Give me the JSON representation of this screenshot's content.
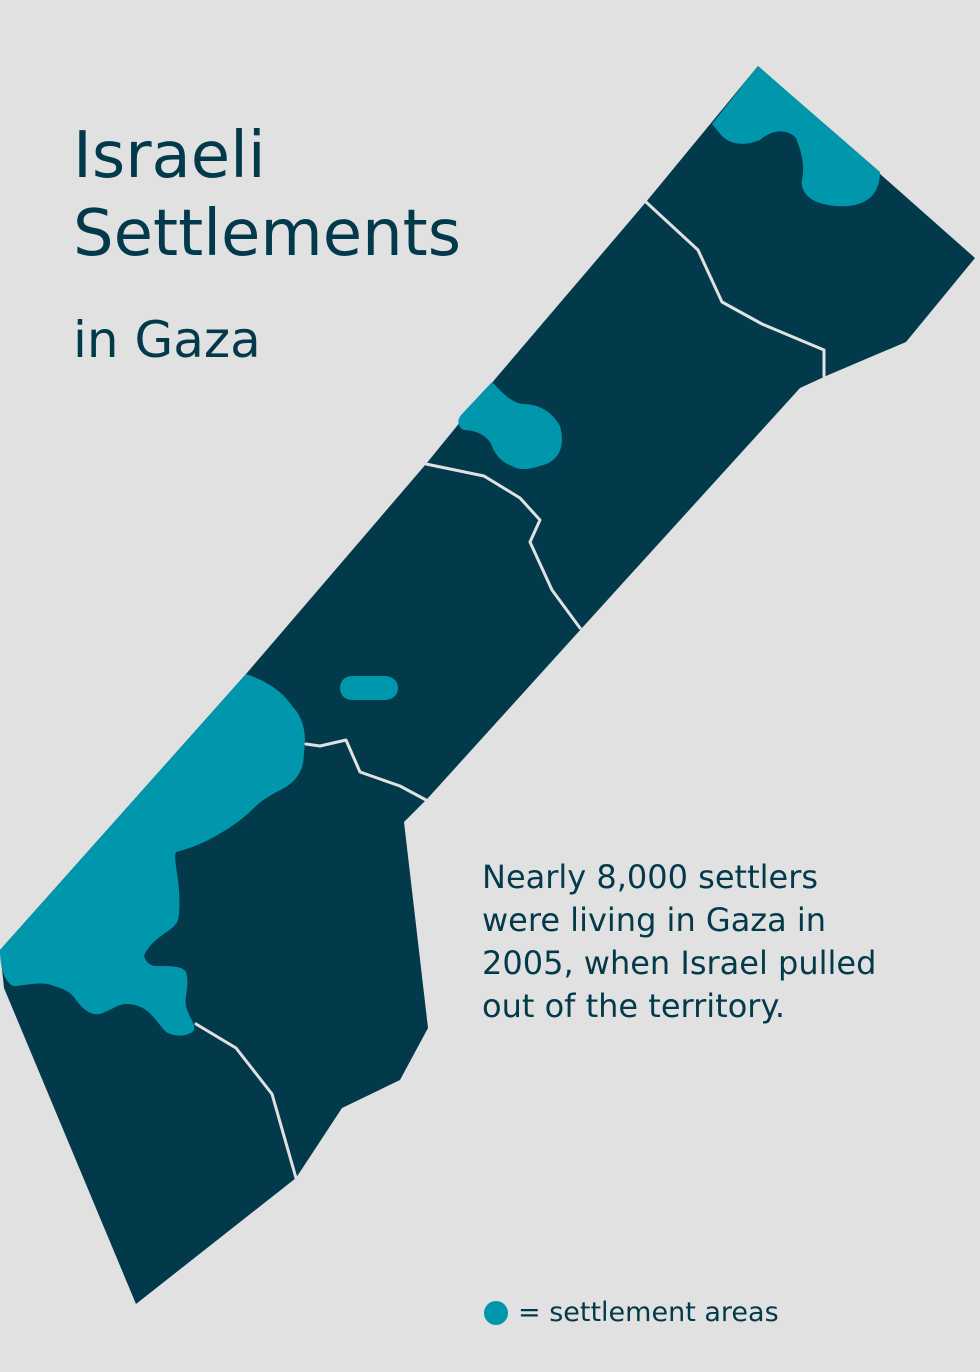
{
  "title": {
    "line1": "Israeli",
    "line2": "Settlements",
    "subtitle": "in Gaza"
  },
  "blurb": "Nearly 8,000 settlers\nwere living in Gaza in\n2005, when Israel pulled\nout of the territory.",
  "legend": {
    "label": "= settlement areas",
    "swatch_color": "#0096ab"
  },
  "colors": {
    "background": "#e1e1e1",
    "territory": "#033a4b",
    "settlement": "#0096ab",
    "border_line": "#e1e1e1",
    "text": "#033a4b"
  }
}
